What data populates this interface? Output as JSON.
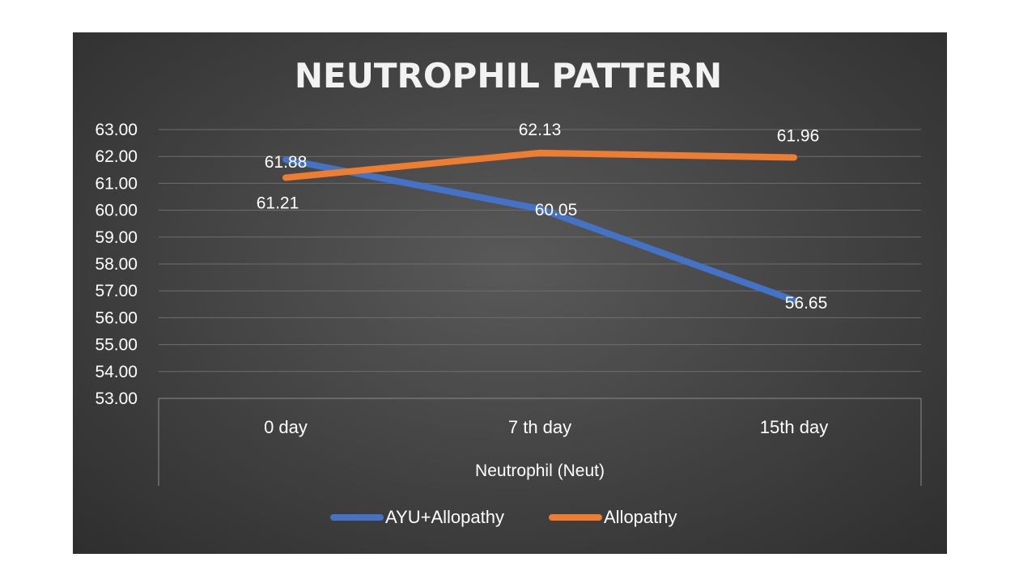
{
  "chart_data": {
    "type": "line",
    "title": "NEUTROPHIL PATTERN",
    "xlabel": "Neutrophil (Neut)",
    "ylabel": "",
    "categories": [
      "0 day",
      "7 th day",
      "15th day"
    ],
    "ylim": [
      53,
      63
    ],
    "yticks": [
      "63.00",
      "62.00",
      "61.00",
      "60.00",
      "59.00",
      "58.00",
      "57.00",
      "56.00",
      "55.00",
      "54.00",
      "53.00"
    ],
    "grid": true,
    "legend": "bottom",
    "series": [
      {
        "name": "AYU+Allopathy",
        "color": "#4472c4",
        "values": [
          61.88,
          60.05,
          56.65
        ],
        "labels": [
          "61.88",
          "60.05",
          "56.65"
        ]
      },
      {
        "name": "Allopathy",
        "color": "#ed7d31",
        "values": [
          61.21,
          62.13,
          61.96
        ],
        "labels": [
          "61.21",
          "62.13",
          "61.96"
        ]
      }
    ]
  }
}
